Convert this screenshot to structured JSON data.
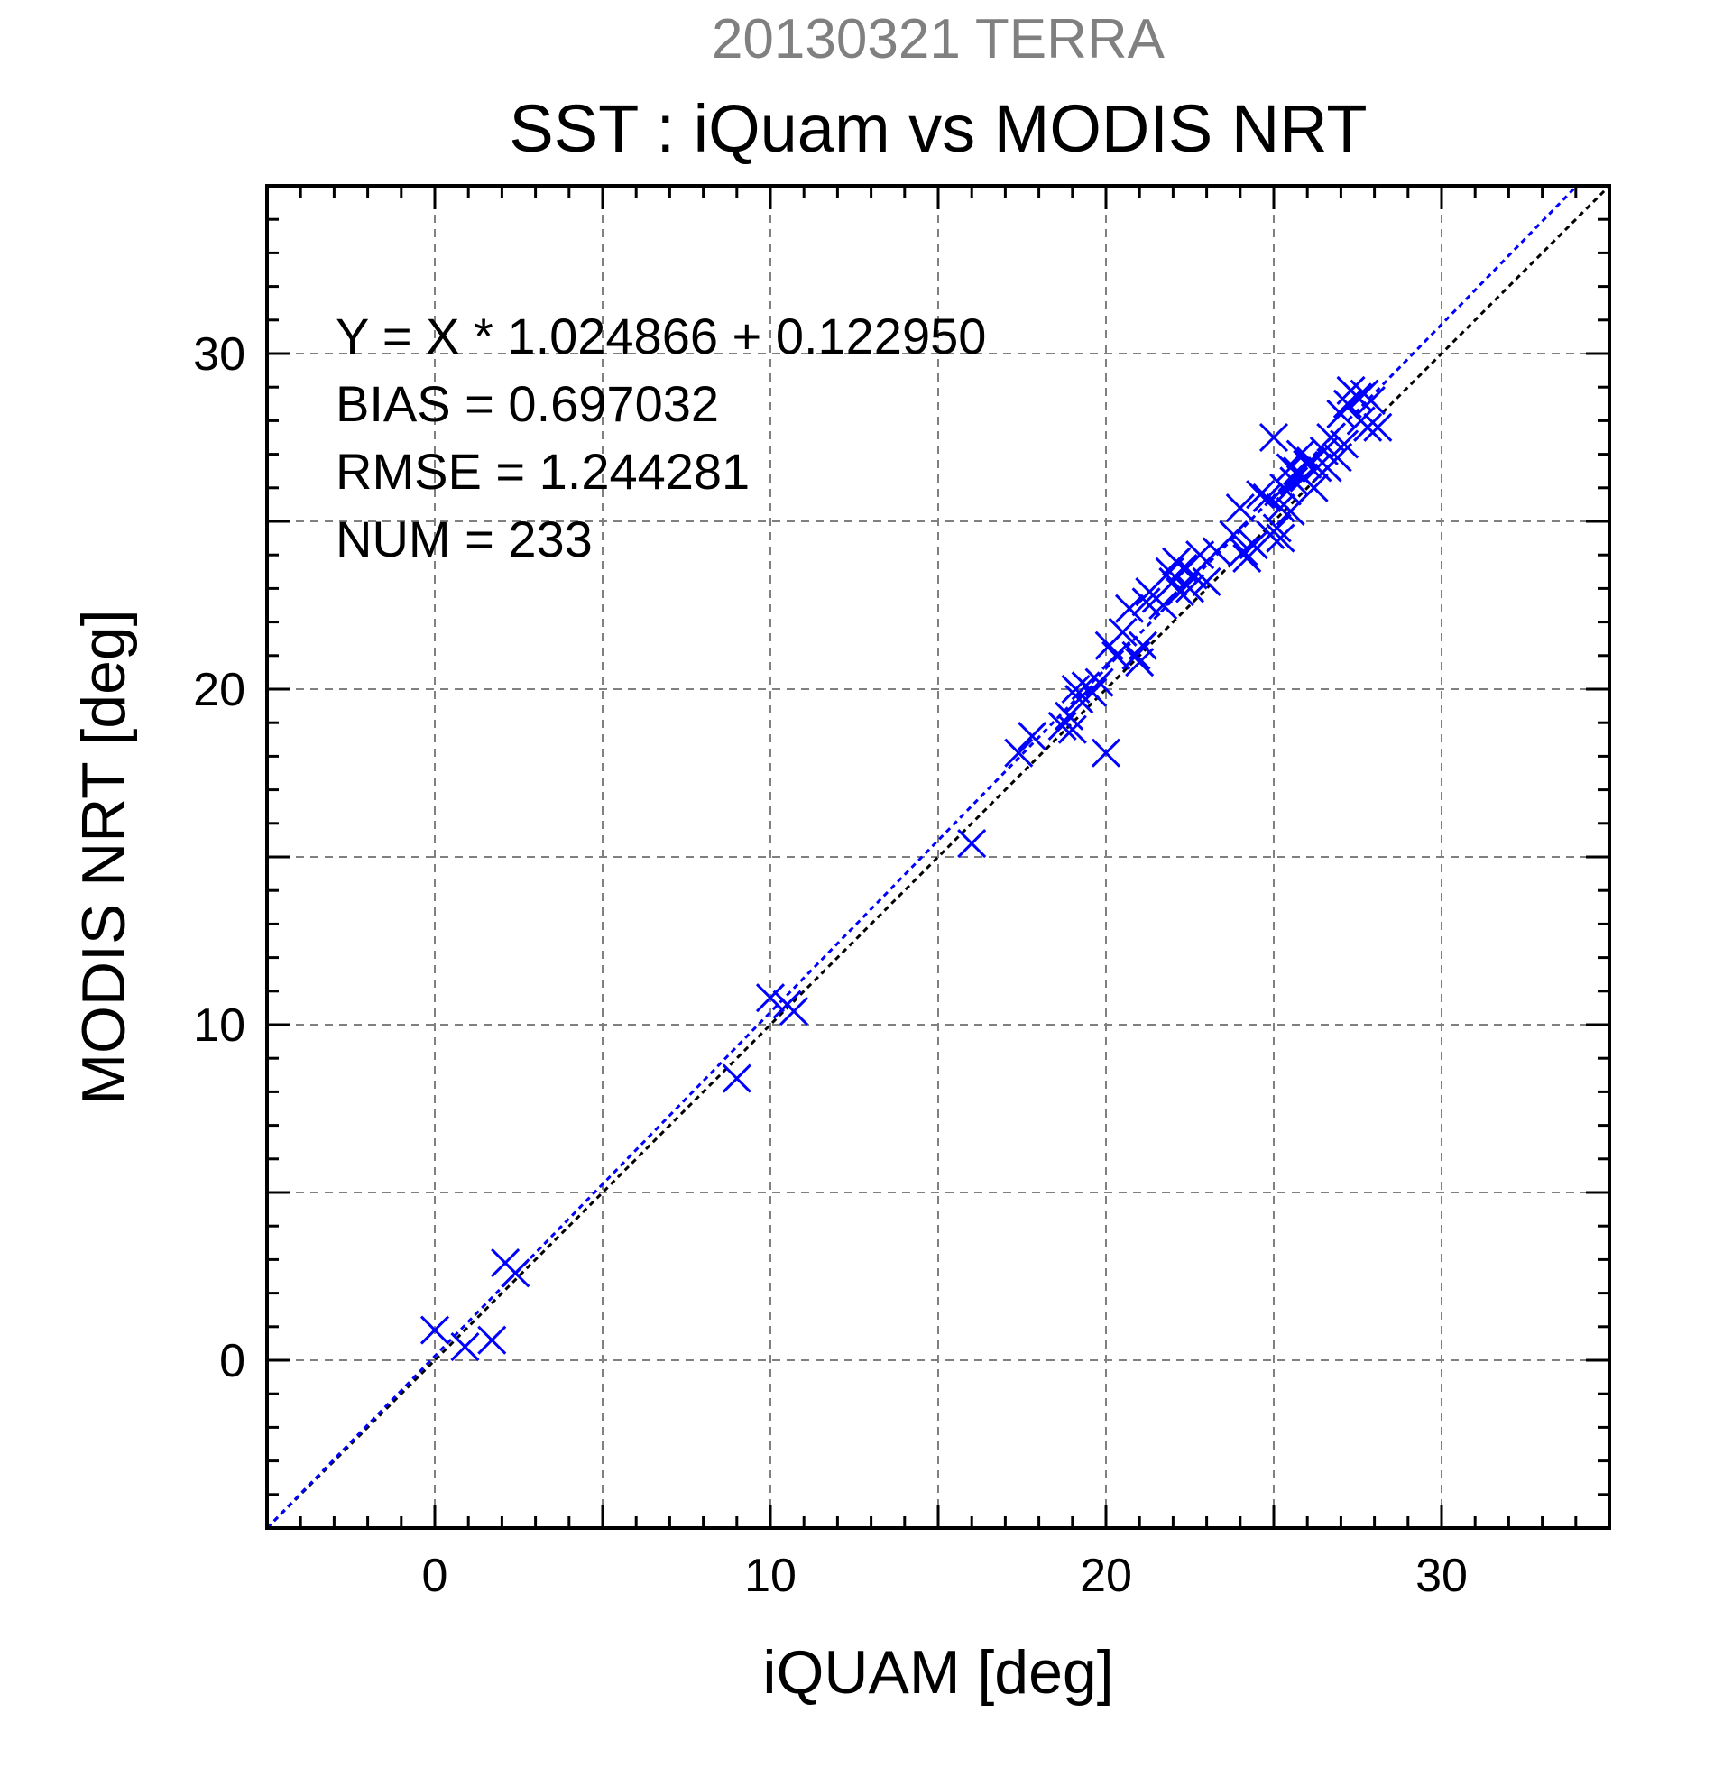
{
  "chart_data": {
    "type": "scatter",
    "title_date": "20130321 TERRA",
    "title": "SST : iQuam vs MODIS NRT",
    "xlabel": "iQUAM [deg]",
    "ylabel": "MODIS NRT [deg]",
    "xlim": [
      -5,
      35
    ],
    "ylim": [
      -5,
      35
    ],
    "xticks": [
      0,
      10,
      20,
      30
    ],
    "yticks": [
      0,
      10,
      20,
      30
    ],
    "grid": true,
    "grid_step": 5,
    "colors": {
      "points": "#0000ff",
      "fit_line": "#0000ff",
      "identity_line": "#000000",
      "grid": "#808080"
    },
    "stats": [
      "Y = X * 1.024866 + 0.122950",
      "BIAS = 0.697032",
      "RMSE = 1.244281",
      "NUM = 233"
    ],
    "fit": {
      "slope": 1.024866,
      "intercept": 0.12295
    },
    "series": [
      {
        "marker": "x",
        "x": [
          0.0,
          0.9,
          1.7,
          2.1,
          2.4,
          9.0,
          10.0,
          10.5,
          10.7,
          16.0,
          17.4,
          17.8,
          18.7,
          18.9,
          19.0,
          19.1,
          19.2,
          19.4,
          19.6,
          19.8,
          20.0,
          20.1,
          20.3,
          20.5,
          20.7,
          20.9,
          21.0,
          21.1,
          21.2,
          21.3,
          21.5,
          21.7,
          21.9,
          22.0,
          22.1,
          22.2,
          22.3,
          22.5,
          22.6,
          22.8,
          23.0,
          23.3,
          23.8,
          24.0,
          24.1,
          24.2,
          24.4,
          24.6,
          24.8,
          25.0,
          25.1,
          25.2,
          25.3,
          25.4,
          25.5,
          25.6,
          25.7,
          25.8,
          25.9,
          26.0,
          26.1,
          26.3,
          26.5,
          26.7,
          26.9,
          27.0,
          27.2,
          27.3,
          27.5,
          27.6,
          27.7,
          27.8,
          27.9,
          28.1,
          24.9,
          25.2,
          25.5,
          26.2,
          26.6,
          27.1
        ],
        "y": [
          0.9,
          0.4,
          0.6,
          2.9,
          2.6,
          8.4,
          10.8,
          10.6,
          10.4,
          15.4,
          18.1,
          18.6,
          18.9,
          19.2,
          18.8,
          20.0,
          19.7,
          20.1,
          19.9,
          20.2,
          18.1,
          21.3,
          21.0,
          21.7,
          22.4,
          21.0,
          20.8,
          21.3,
          22.6,
          22.9,
          22.7,
          22.5,
          23.5,
          23.2,
          23.8,
          22.9,
          23.6,
          23.0,
          23.4,
          24.0,
          23.2,
          24.1,
          24.6,
          25.4,
          24.1,
          23.9,
          24.3,
          25.8,
          25.7,
          27.5,
          24.8,
          25.4,
          26.0,
          25.9,
          26.6,
          26.2,
          26.5,
          27.0,
          26.3,
          26.7,
          26.8,
          26.6,
          27.1,
          27.5,
          26.9,
          28.2,
          28.5,
          28.9,
          28.7,
          28.0,
          28.8,
          27.8,
          28.6,
          27.8,
          24.6,
          24.5,
          25.3,
          26.0,
          26.6,
          27.3
        ]
      }
    ]
  }
}
